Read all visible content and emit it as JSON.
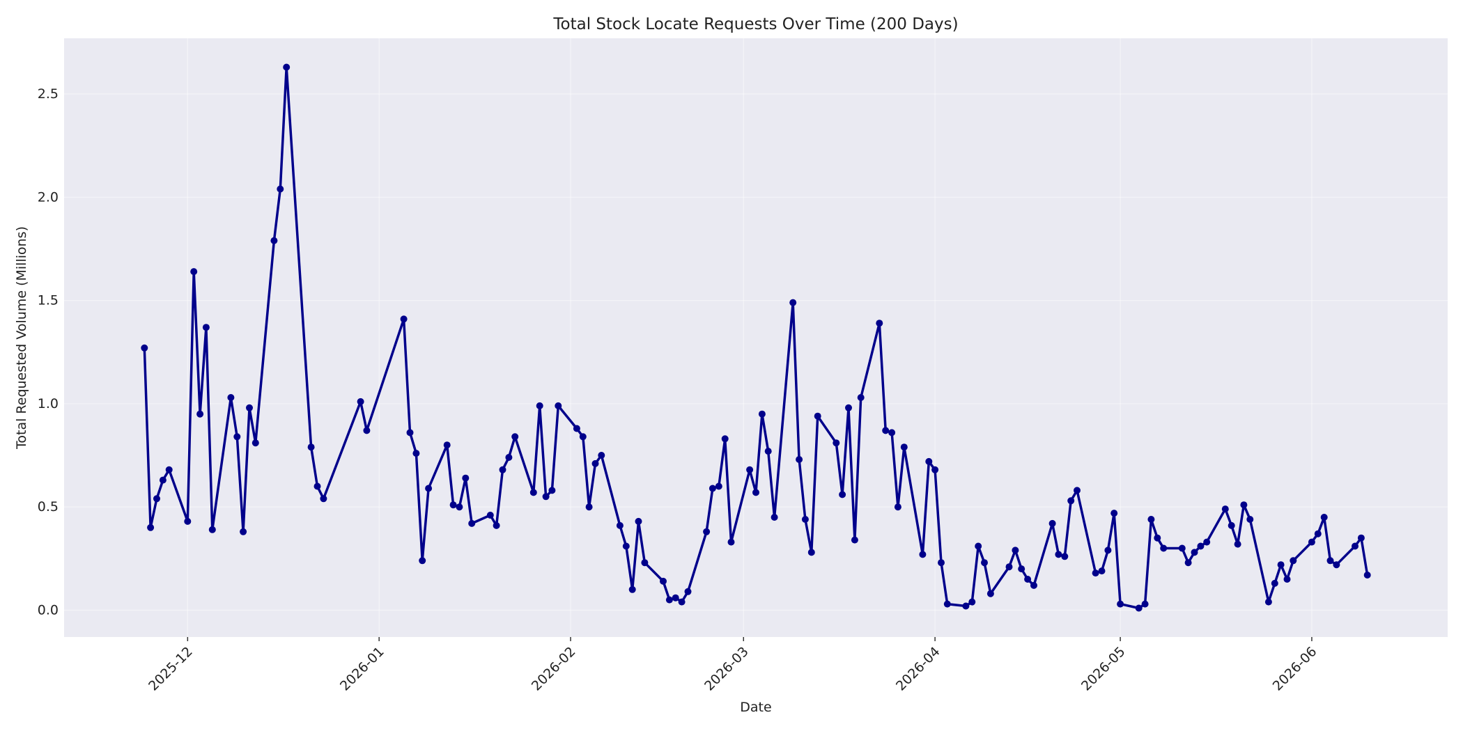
{
  "chart_data": {
    "type": "line",
    "title": "Total Stock Locate Requests Over Time (200 Days)",
    "xlabel": "Date",
    "ylabel": "Total Requested Volume (Millions)",
    "x_range": [
      "2025-11-11",
      "2026-06-23"
    ],
    "ylim": [
      -0.13,
      2.77
    ],
    "y_ticks": [
      0.0,
      0.5,
      1.0,
      1.5,
      2.0,
      2.5
    ],
    "y_tick_labels": [
      "0.0",
      "0.5",
      "1.0",
      "1.5",
      "2.0",
      "2.5"
    ],
    "x_ticks": [
      "2025-12-01",
      "2026-01-01",
      "2026-02-01",
      "2026-03-01",
      "2026-04-01",
      "2026-05-01",
      "2026-06-01"
    ],
    "x_tick_labels": [
      "2025-12",
      "2026-01",
      "2026-02",
      "2026-03",
      "2026-04",
      "2026-05",
      "2026-06"
    ],
    "grid": true,
    "line_color": "#00008b",
    "background_color": "#eaeaf2",
    "series": [
      {
        "x": [
          "2025-11-24",
          "2025-11-25",
          "2025-11-26",
          "2025-11-27",
          "2025-11-28",
          "2025-12-01",
          "2025-12-02",
          "2025-12-03",
          "2025-12-04",
          "2025-12-05",
          "2025-12-08",
          "2025-12-09",
          "2025-12-10",
          "2025-12-11",
          "2025-12-12",
          "2025-12-15",
          "2025-12-16",
          "2025-12-17",
          "2025-12-21",
          "2025-12-22",
          "2025-12-23",
          "2025-12-29",
          "2025-12-30",
          "2026-01-05",
          "2026-01-06",
          "2026-01-07",
          "2026-01-08",
          "2026-01-09",
          "2026-01-12",
          "2026-01-13",
          "2026-01-14",
          "2026-01-15",
          "2026-01-16",
          "2026-01-19",
          "2026-01-20",
          "2026-01-21",
          "2026-01-22",
          "2026-01-23",
          "2026-01-26",
          "2026-01-27",
          "2026-01-28",
          "2026-01-29",
          "2026-01-30",
          "2026-02-02",
          "2026-02-03",
          "2026-02-04",
          "2026-02-05",
          "2026-02-06",
          "2026-02-09",
          "2026-02-10",
          "2026-02-11",
          "2026-02-12",
          "2026-02-13",
          "2026-02-16",
          "2026-02-17",
          "2026-02-18",
          "2026-02-19",
          "2026-02-20",
          "2026-02-23",
          "2026-02-24",
          "2026-02-25",
          "2026-02-26",
          "2026-02-27",
          "2026-03-02",
          "2026-03-03",
          "2026-03-04",
          "2026-03-05",
          "2026-03-06",
          "2026-03-09",
          "2026-03-10",
          "2026-03-11",
          "2026-03-12",
          "2026-03-13",
          "2026-03-16",
          "2026-03-17",
          "2026-03-18",
          "2026-03-19",
          "2026-03-20",
          "2026-03-23",
          "2026-03-24",
          "2026-03-25",
          "2026-03-26",
          "2026-03-27",
          "2026-03-30",
          "2026-03-31",
          "2026-04-01",
          "2026-04-02",
          "2026-04-03",
          "2026-04-06",
          "2026-04-07",
          "2026-04-08",
          "2026-04-09",
          "2026-04-10",
          "2026-04-13",
          "2026-04-14",
          "2026-04-15",
          "2026-04-16",
          "2026-04-17",
          "2026-04-20",
          "2026-04-21",
          "2026-04-22",
          "2026-04-23",
          "2026-04-24",
          "2026-04-27",
          "2026-04-28",
          "2026-04-29",
          "2026-04-30",
          "2026-05-01",
          "2026-05-04",
          "2026-05-05",
          "2026-05-06",
          "2026-05-07",
          "2026-05-08",
          "2026-05-11",
          "2026-05-12",
          "2026-05-13",
          "2026-05-14",
          "2026-05-15",
          "2026-05-18",
          "2026-05-19",
          "2026-05-20",
          "2026-05-21",
          "2026-05-22",
          "2026-05-25",
          "2026-05-26",
          "2026-05-27",
          "2026-05-28",
          "2026-05-29",
          "2026-06-01",
          "2026-06-02",
          "2026-06-03",
          "2026-06-04",
          "2026-06-05",
          "2026-06-08",
          "2026-06-09",
          "2026-06-10"
        ],
        "y": [
          1.27,
          0.4,
          0.54,
          0.63,
          0.68,
          0.43,
          1.64,
          0.95,
          1.37,
          0.39,
          1.03,
          0.84,
          0.38,
          0.98,
          0.81,
          1.79,
          2.04,
          2.63,
          0.79,
          0.6,
          0.54,
          1.01,
          0.87,
          1.41,
          0.86,
          0.76,
          0.24,
          0.59,
          0.8,
          0.51,
          0.5,
          0.64,
          0.42,
          0.46,
          0.41,
          0.68,
          0.74,
          0.84,
          0.57,
          0.99,
          0.55,
          0.58,
          0.99,
          0.88,
          0.84,
          0.5,
          0.71,
          0.75,
          0.41,
          0.31,
          0.1,
          0.43,
          0.23,
          0.14,
          0.05,
          0.06,
          0.04,
          0.09,
          0.38,
          0.59,
          0.6,
          0.83,
          0.33,
          0.68,
          0.57,
          0.95,
          0.77,
          0.45,
          1.49,
          0.73,
          0.44,
          0.28,
          0.94,
          0.81,
          0.56,
          0.98,
          0.34,
          1.03,
          1.39,
          0.87,
          0.86,
          0.5,
          0.79,
          0.27,
          0.72,
          0.68,
          0.23,
          0.03,
          0.02,
          0.04,
          0.31,
          0.23,
          0.08,
          0.21,
          0.29,
          0.2,
          0.15,
          0.12,
          0.42,
          0.27,
          0.26,
          0.53,
          0.58,
          0.18,
          0.19,
          0.29,
          0.47,
          0.03,
          0.01,
          0.03,
          0.44,
          0.35,
          0.3,
          0.3,
          0.23,
          0.28,
          0.31,
          0.33,
          0.49,
          0.41,
          0.32,
          0.51,
          0.44,
          0.04,
          0.13,
          0.22,
          0.15,
          0.24,
          0.33,
          0.37,
          0.45,
          0.24,
          0.22,
          0.31,
          0.35,
          0.17
        ]
      }
    ]
  }
}
